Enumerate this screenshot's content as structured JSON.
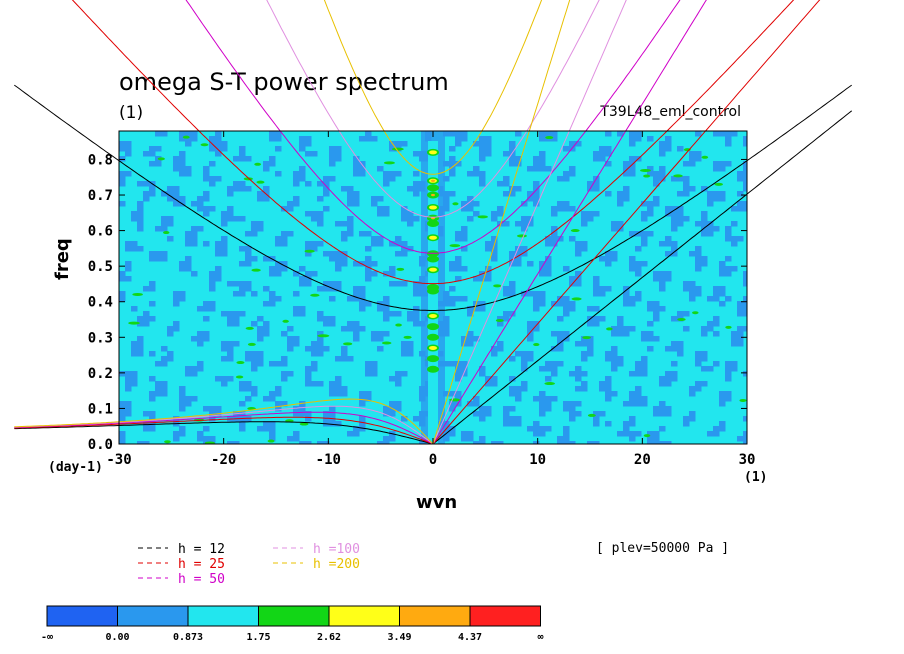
{
  "chart_data": {
    "type": "heatmap",
    "title": "omega S-T power spectrum",
    "subtitle": "(1)",
    "annotation_right": "T39L48_eml_control",
    "xlabel": "wvn",
    "ylabel": "freq",
    "xunit": "(1)",
    "yunit": "(day-1)",
    "xlim": [
      -30,
      30
    ],
    "ylim": [
      0,
      0.88
    ],
    "xticks": [
      "-30",
      "-20",
      "-10",
      "0",
      "10",
      "20",
      "30"
    ],
    "yticks": [
      "0.0",
      "0.1",
      "0.2",
      "0.3",
      "0.4",
      "0.5",
      "0.6",
      "0.7",
      "0.8"
    ],
    "levels_note": "[ plev=50000 Pa ]",
    "colorbar": {
      "labels": [
        "-∞",
        "0.00",
        "0.873",
        "1.75",
        "2.62",
        "3.49",
        "4.37",
        "∞"
      ],
      "colors": [
        "#1f63f2",
        "#2a98ee",
        "#22e6ee",
        "#12d616",
        "#ffff18",
        "#ffaa10",
        "#ff2020"
      ]
    },
    "heatmap_description": "mostly 0.873-1.75 (cyan) with blue 0.00-0.873 patches; high-power column near wvn=0 with values up to 4.37",
    "dispersion_curves": [
      {
        "name": "h = 12",
        "color": "#000000"
      },
      {
        "name": "h = 25",
        "color": "#e00000"
      },
      {
        "name": "h = 50",
        "color": "#d000c8"
      },
      {
        "name": "h =100",
        "color": "#e090e0"
      },
      {
        "name": "h =200",
        "color": "#e8c000"
      }
    ],
    "grid": false
  }
}
